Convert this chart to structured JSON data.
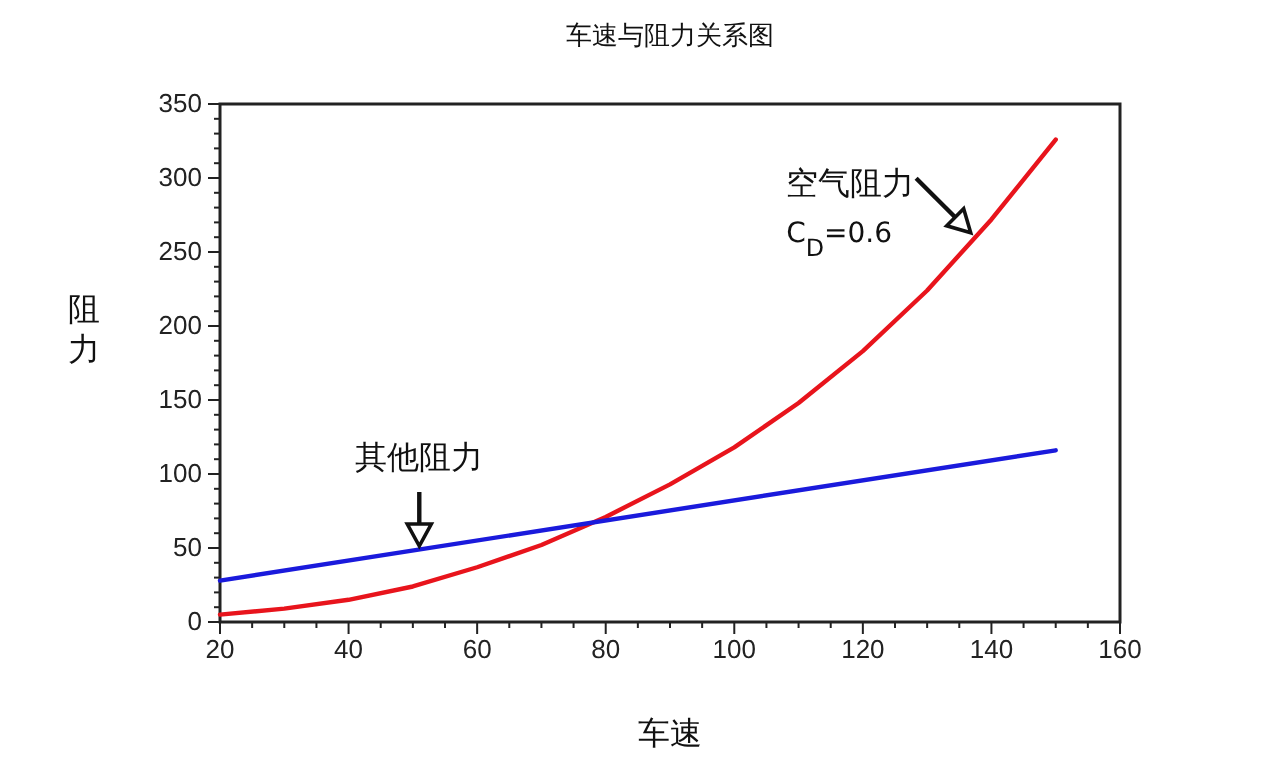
{
  "chart_data": {
    "type": "line",
    "title": "车速与阻力关系图",
    "xlabel": "车速",
    "ylabel": "阻力",
    "xlim": [
      20,
      160
    ],
    "xticks": [
      20,
      {
        "value": 25,
        "label": null
      },
      {
        "value": 30,
        "label": null
      },
      {
        "value": 35,
        "label": null
      },
      40,
      {
        "value": 45,
        "label": null
      },
      {
        "value": 50,
        "label": null
      },
      {
        "value": 55,
        "label": null
      },
      60,
      {
        "value": 65,
        "label": null
      },
      {
        "value": 70,
        "label": null
      },
      {
        "value": 75,
        "label": null
      },
      80,
      {
        "value": 85,
        "label": null
      },
      {
        "value": 90,
        "label": null
      },
      {
        "value": 95,
        "label": null
      },
      100,
      {
        "value": 105,
        "label": null
      },
      {
        "value": 110,
        "label": null
      },
      {
        "value": 115,
        "label": null
      },
      120,
      {
        "value": 125,
        "label": null
      },
      {
        "value": 130,
        "label": null
      },
      {
        "value": 135,
        "label": null
      },
      140,
      {
        "value": 145,
        "label": null
      },
      {
        "value": 150,
        "label": null
      },
      {
        "value": 155,
        "label": null
      },
      160
    ],
    "ylim": [
      0,
      350
    ],
    "yticks": [
      0,
      {
        "value": 10,
        "label": null
      },
      {
        "value": 20,
        "label": null
      },
      {
        "value": 30,
        "label": null
      },
      {
        "value": 40,
        "label": null
      },
      50,
      {
        "value": 60,
        "label": null
      },
      {
        "value": 70,
        "label": null
      },
      {
        "value": 80,
        "label": null
      },
      {
        "value": 90,
        "label": null
      },
      100,
      {
        "value": 110,
        "label": null
      },
      {
        "value": 120,
        "label": null
      },
      {
        "value": 130,
        "label": null
      },
      {
        "value": 140,
        "label": null
      },
      150,
      {
        "value": 160,
        "label": null
      },
      {
        "value": 170,
        "label": null
      },
      {
        "value": 180,
        "label": null
      },
      {
        "value": 190,
        "label": null
      },
      200,
      {
        "value": 210,
        "label": null
      },
      {
        "value": 220,
        "label": null
      },
      {
        "value": 230,
        "label": null
      },
      {
        "value": 240,
        "label": null
      },
      250,
      {
        "value": 260,
        "label": null
      },
      {
        "value": 270,
        "label": null
      },
      {
        "value": 280,
        "label": null
      },
      {
        "value": 290,
        "label": null
      },
      300,
      {
        "value": 310,
        "label": null
      },
      {
        "value": 320,
        "label": null
      },
      {
        "value": 330,
        "label": null
      },
      {
        "value": 340,
        "label": null
      },
      350
    ],
    "grid": false,
    "series": [
      {
        "color": "#e8141c",
        "x": [
          20,
          30,
          40,
          50,
          60,
          70,
          80,
          90,
          100,
          110,
          120,
          130,
          140,
          150
        ],
        "values": [
          5,
          9,
          15,
          24,
          37,
          52,
          71,
          93,
          118,
          148,
          183,
          224,
          272,
          326
        ]
      },
      {
        "color": "#1a1adc",
        "x": [
          20,
          150
        ],
        "values": [
          28,
          116
        ]
      }
    ],
    "annotations": [
      {
        "text": "空气阻力",
        "x": 137,
        "y": 262
      },
      "C$_{D}$=0.6",
      {
        "text": "其他阻力",
        "x": 51,
        "y": 50
      }
    ]
  }
}
